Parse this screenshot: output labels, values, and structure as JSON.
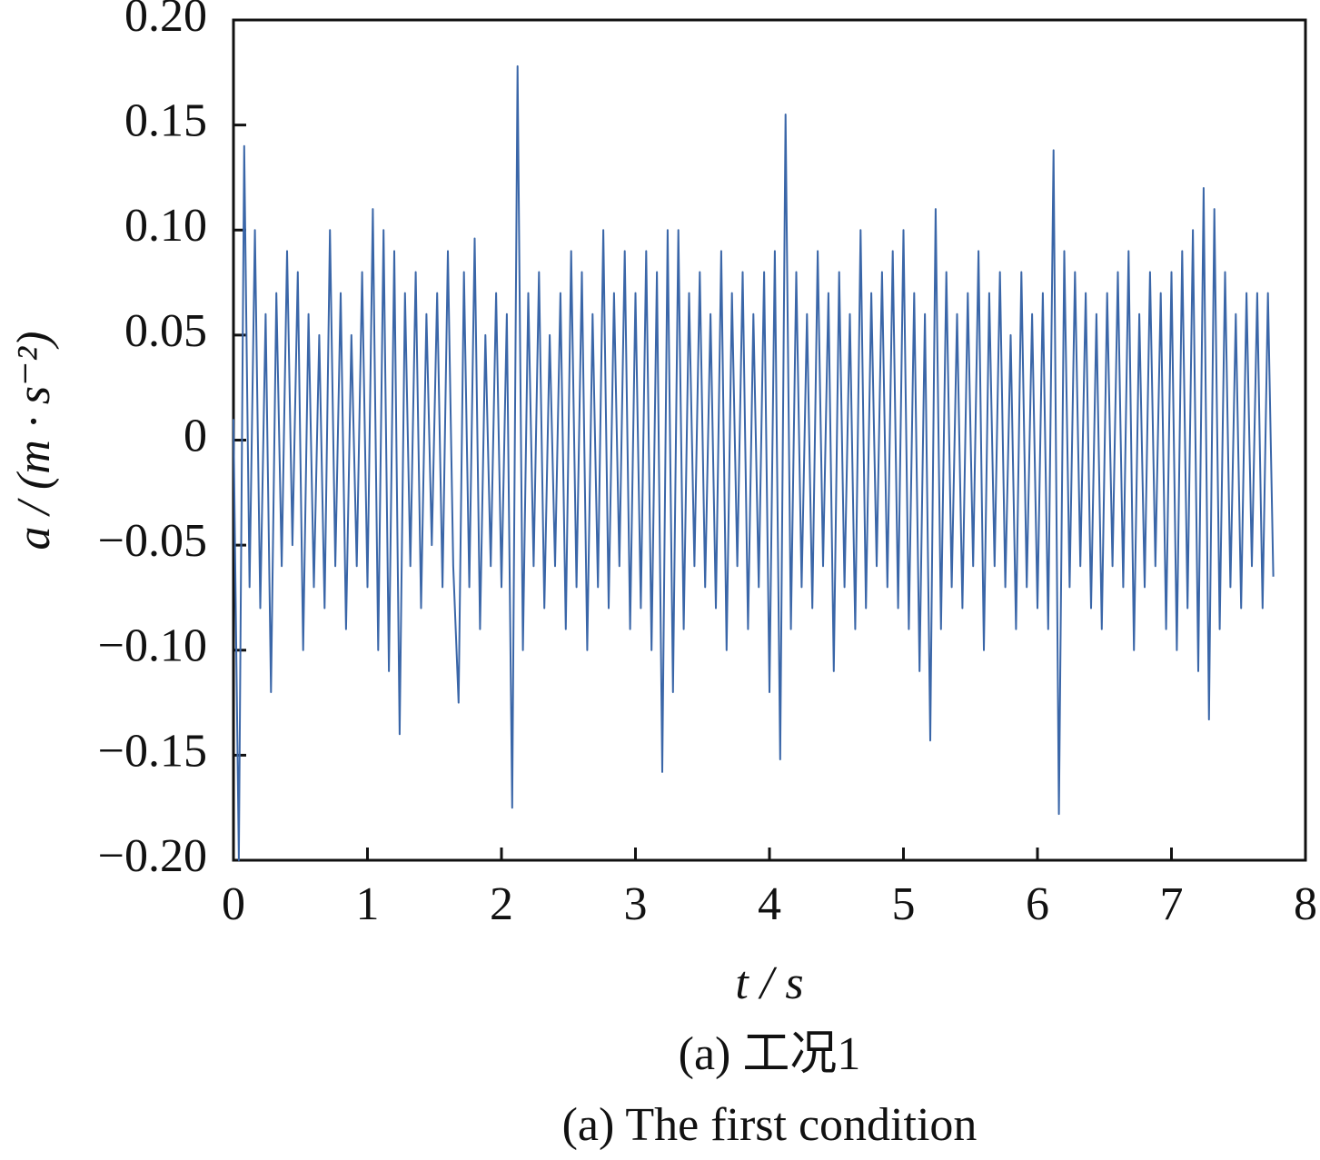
{
  "chart_data": {
    "type": "line",
    "xlabel": "t / s",
    "ylabel": "a / (m · s⁻²)",
    "captions": [
      "(a)  工况1",
      "(a)  The first condition"
    ],
    "xlim": [
      0,
      8
    ],
    "xticks": [
      0,
      1,
      2,
      3,
      4,
      5,
      6,
      7,
      8
    ],
    "ylim": [
      -0.2,
      0.2
    ],
    "yticks": [
      {
        "value": -0.2,
        "label": "−0.20"
      },
      {
        "value": -0.15,
        "label": "−0.15"
      },
      {
        "value": -0.1,
        "label": "−0.10"
      },
      {
        "value": -0.05,
        "label": "−0.05"
      },
      0,
      {
        "value": 0.05,
        "label": "0.05"
      },
      {
        "value": 0.1,
        "label": "0.10"
      },
      {
        "value": 0.15,
        "label": "0.15"
      },
      {
        "value": 0.2,
        "label": "0.20"
      }
    ],
    "grid": false,
    "x": [
      0,
      0.04,
      0.08,
      0.12,
      0.16,
      0.2,
      0.24,
      0.28,
      0.32,
      0.36,
      0.4,
      0.44,
      0.48,
      0.52,
      0.56,
      0.6,
      0.64,
      0.68,
      0.72,
      0.76,
      0.8,
      0.84,
      0.88,
      0.92,
      0.96,
      1,
      1.04,
      1.08,
      1.12,
      1.16,
      1.2,
      1.24,
      1.28,
      1.32,
      1.36,
      1.4,
      1.44,
      1.48,
      1.52,
      1.56,
      1.6,
      1.64,
      1.68,
      1.72,
      1.76,
      1.8,
      1.84,
      1.88,
      1.92,
      1.96,
      2,
      2.04,
      2.08,
      2.12,
      2.16,
      2.2,
      2.24,
      2.28,
      2.32,
      2.36,
      2.4,
      2.44,
      2.48,
      2.52,
      2.56,
      2.6,
      2.64,
      2.68,
      2.72,
      2.76,
      2.8,
      2.84,
      2.88,
      2.92,
      2.96,
      3,
      3.04,
      3.08,
      3.12,
      3.16,
      3.2,
      3.24,
      3.28,
      3.32,
      3.36,
      3.4,
      3.44,
      3.48,
      3.52,
      3.56,
      3.6,
      3.64,
      3.68,
      3.72,
      3.76,
      3.8,
      3.84,
      3.88,
      3.92,
      3.96,
      4,
      4.04,
      4.08,
      4.12,
      4.16,
      4.2,
      4.24,
      4.28,
      4.32,
      4.36,
      4.4,
      4.44,
      4.48,
      4.52,
      4.56,
      4.6,
      4.64,
      4.68,
      4.72,
      4.76,
      4.8,
      4.84,
      4.88,
      4.92,
      4.96,
      5,
      5.04,
      5.08,
      5.12,
      5.16,
      5.2,
      5.24,
      5.28,
      5.32,
      5.36,
      5.4,
      5.44,
      5.48,
      5.52,
      5.56,
      5.6,
      5.64,
      5.68,
      5.72,
      5.76,
      5.8,
      5.84,
      5.88,
      5.92,
      5.96,
      6,
      6.04,
      6.08,
      6.12,
      6.16,
      6.2,
      6.24,
      6.28,
      6.32,
      6.36,
      6.4,
      6.44,
      6.48,
      6.52,
      6.56,
      6.6,
      6.64,
      6.68,
      6.72,
      6.76,
      6.8,
      6.84,
      6.88,
      6.92,
      6.96,
      7,
      7.04,
      7.08,
      7.12,
      7.16,
      7.2,
      7.24,
      7.28,
      7.32,
      7.36,
      7.4,
      7.44,
      7.48,
      7.52,
      7.56,
      7.6,
      7.64,
      7.68,
      7.72,
      7.76
    ],
    "series": [
      {
        "color": "#3a66a8",
        "values": [
          0.01,
          -0.2,
          0.14,
          -0.07,
          0.1,
          -0.08,
          0.06,
          -0.12,
          0.07,
          -0.06,
          0.09,
          -0.05,
          0.08,
          -0.1,
          0.06,
          -0.07,
          0.05,
          -0.08,
          0.1,
          -0.06,
          0.07,
          -0.09,
          0.05,
          -0.06,
          0.08,
          -0.07,
          0.11,
          -0.1,
          0.1,
          -0.11,
          0.09,
          -0.14,
          0.07,
          -0.06,
          0.08,
          -0.08,
          0.06,
          -0.05,
          0.07,
          -0.07,
          0.09,
          -0.06,
          -0.125,
          0.08,
          -0.07,
          0.096,
          -0.09,
          0.05,
          -0.06,
          0.07,
          -0.07,
          0.06,
          -0.175,
          0.178,
          -0.1,
          0.07,
          -0.06,
          0.08,
          -0.08,
          0.05,
          -0.06,
          0.07,
          -0.09,
          0.09,
          -0.07,
          0.08,
          -0.1,
          0.06,
          -0.07,
          0.1,
          -0.08,
          0.07,
          -0.06,
          0.09,
          -0.09,
          0.07,
          -0.08,
          0.09,
          -0.1,
          0.08,
          -0.158,
          0.1,
          -0.12,
          0.1,
          -0.09,
          0.07,
          -0.06,
          0.08,
          -0.07,
          0.06,
          -0.08,
          0.09,
          -0.1,
          0.07,
          -0.06,
          0.08,
          -0.09,
          0.06,
          -0.07,
          0.08,
          -0.12,
          0.09,
          -0.152,
          0.155,
          -0.09,
          0.08,
          -0.07,
          0.06,
          -0.08,
          0.09,
          -0.06,
          0.07,
          -0.11,
          0.08,
          -0.07,
          0.06,
          -0.09,
          0.1,
          -0.08,
          0.07,
          -0.06,
          0.08,
          -0.07,
          0.09,
          -0.08,
          0.1,
          -0.09,
          0.07,
          -0.11,
          0.06,
          -0.143,
          0.11,
          -0.09,
          0.08,
          -0.07,
          0.06,
          -0.08,
          0.07,
          -0.06,
          0.09,
          -0.1,
          0.07,
          -0.06,
          0.08,
          -0.07,
          0.05,
          -0.09,
          0.08,
          -0.07,
          0.06,
          -0.08,
          0.07,
          -0.09,
          0.138,
          -0.178,
          0.09,
          -0.07,
          0.08,
          -0.06,
          0.07,
          -0.08,
          0.06,
          -0.09,
          0.07,
          -0.06,
          0.08,
          -0.07,
          0.09,
          -0.1,
          0.06,
          -0.07,
          0.08,
          -0.06,
          0.07,
          -0.09,
          0.08,
          -0.1,
          0.09,
          -0.08,
          0.1,
          -0.11,
          0.12,
          -0.133,
          0.11,
          -0.09,
          0.08,
          -0.07,
          0.06,
          -0.08,
          0.07,
          -0.06,
          0.07,
          -0.08,
          0.07,
          -0.065
        ]
      }
    ]
  }
}
